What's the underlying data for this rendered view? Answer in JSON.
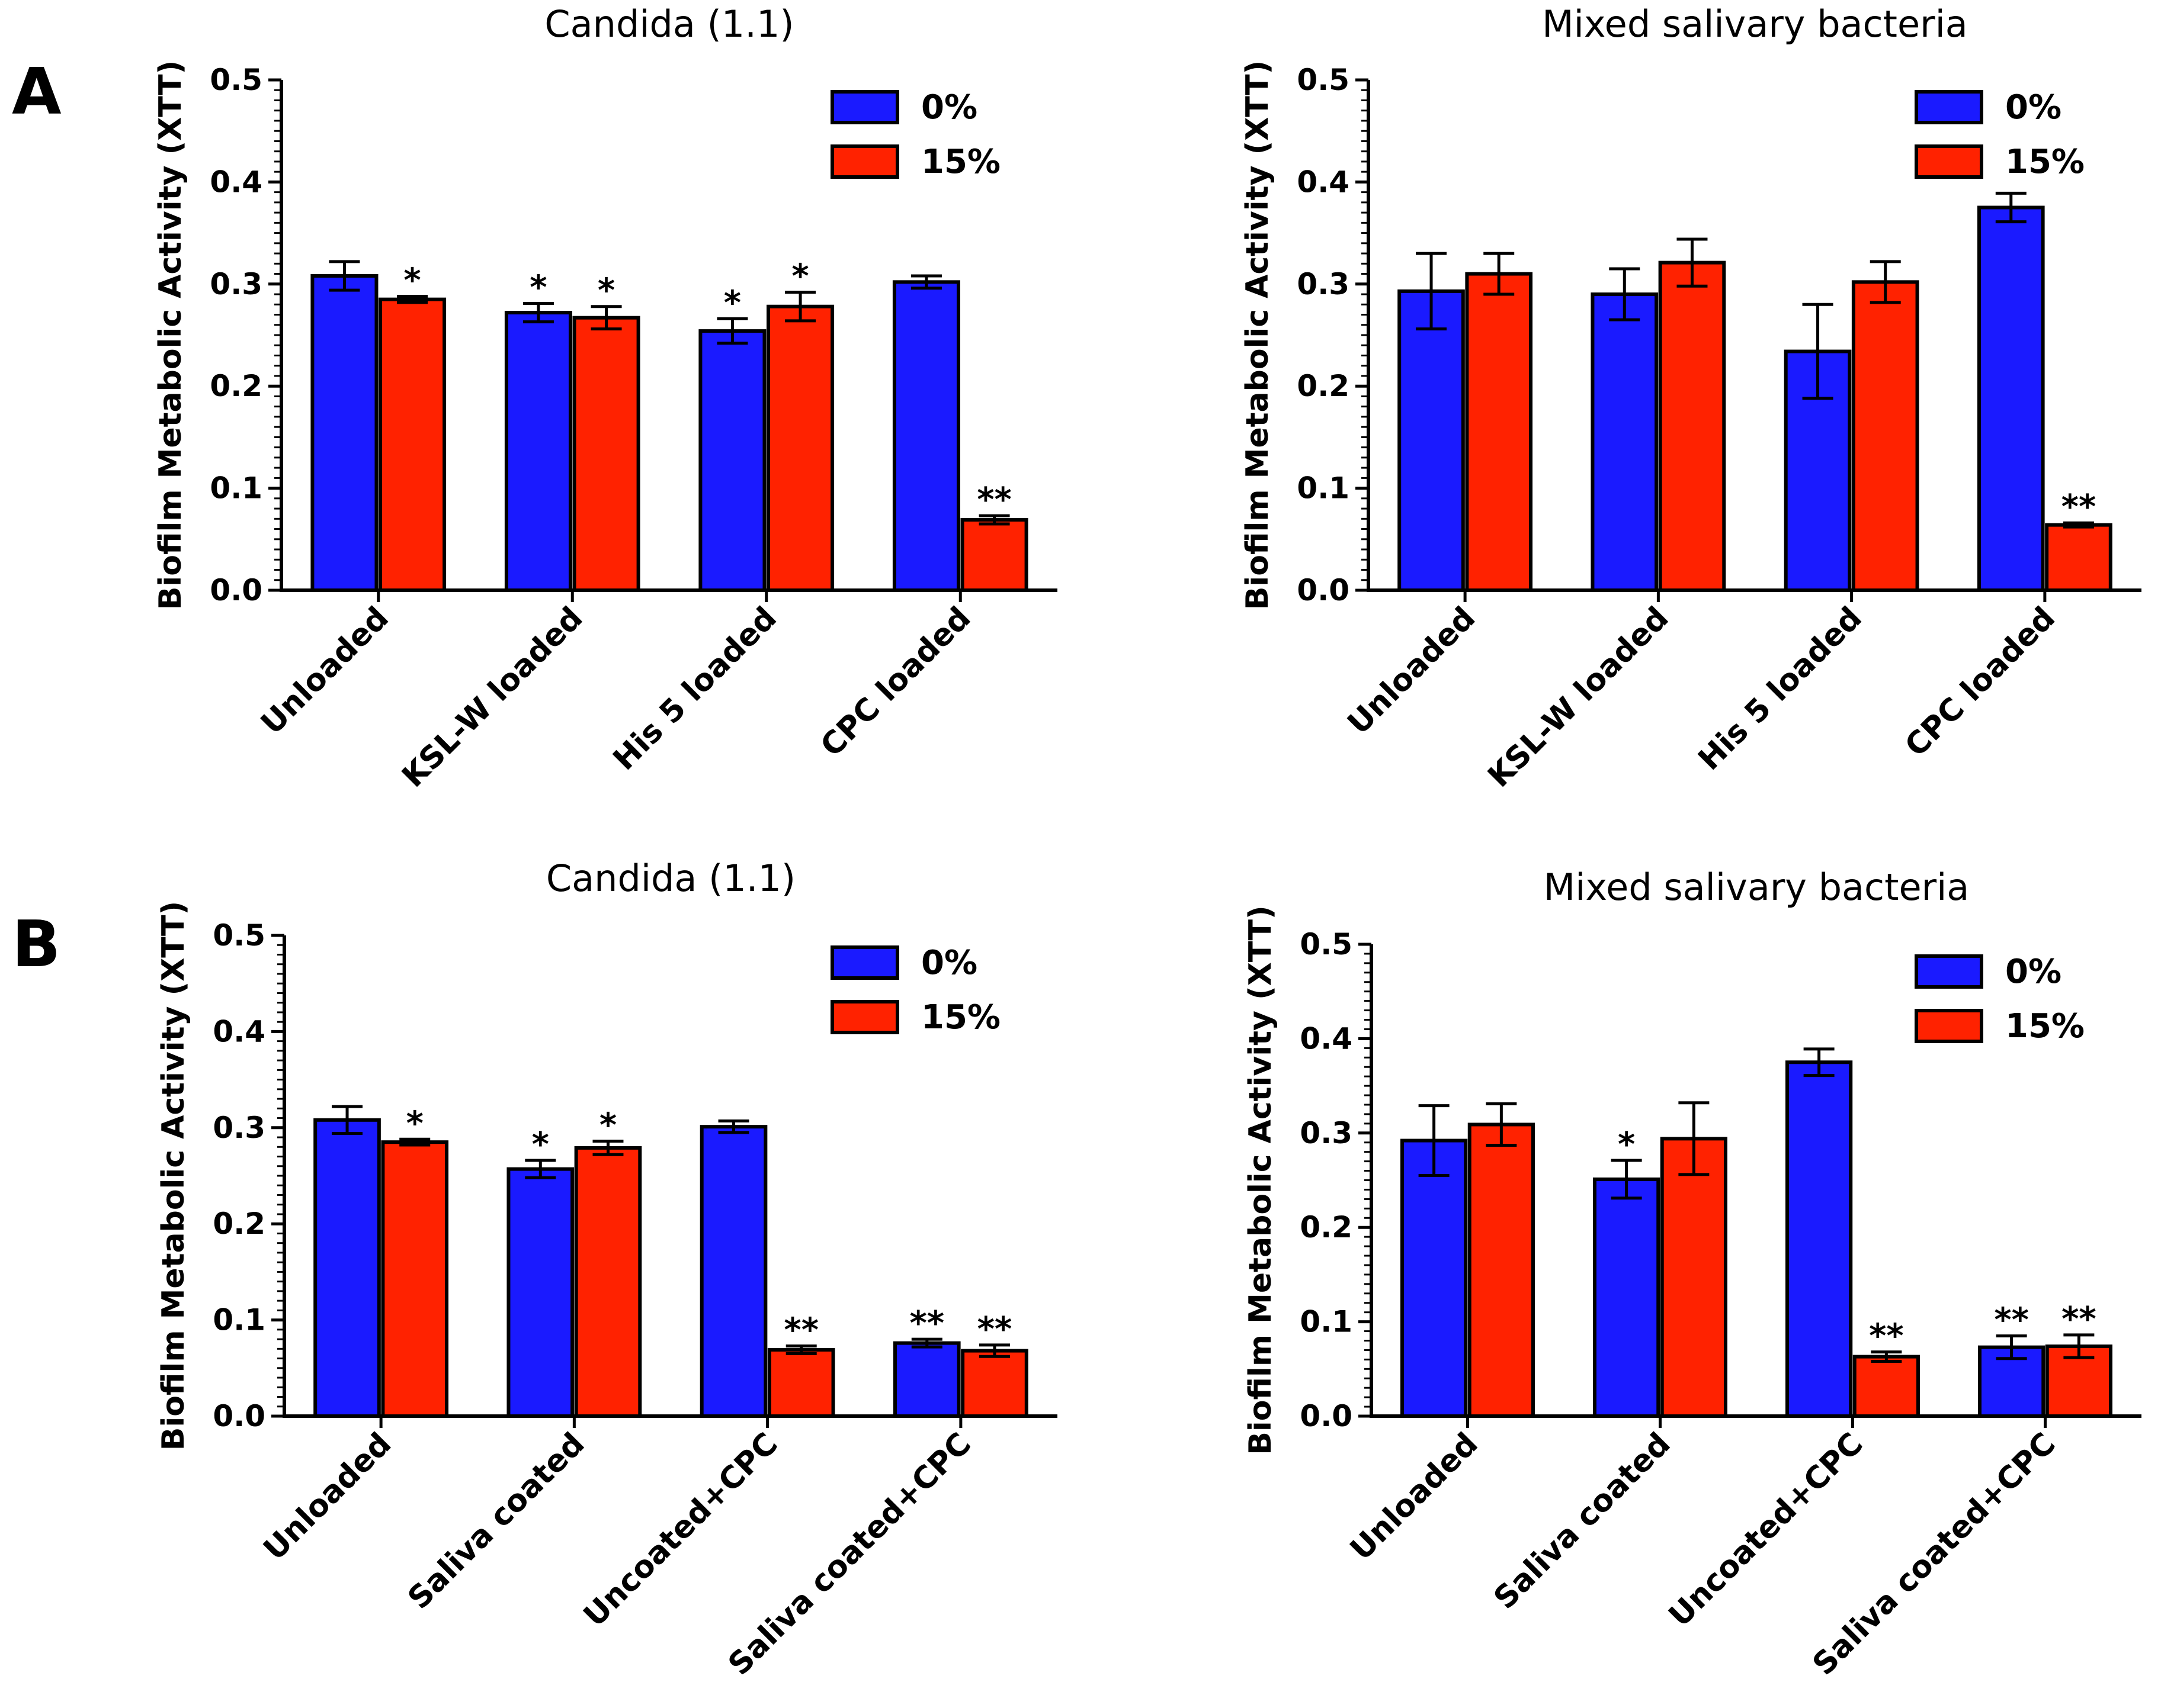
{
  "panel_labels": [
    "A",
    "B"
  ],
  "colors": {
    "zero": "#1a1aff",
    "fifteen": "#ff2200",
    "axis": "#000000"
  },
  "chart_data": [
    {
      "type": "bar",
      "panel": "A",
      "title": "Candida (1.1)",
      "xlabel": "",
      "ylabel": "Biofilm Metabolic Activity (XTT)",
      "ylim": [
        0,
        0.5
      ],
      "yticks": [
        "0.0",
        "0.1",
        "0.2",
        "0.3",
        "0.4",
        "0.5"
      ],
      "legend": "top-right",
      "categories": [
        "Unloaded",
        "KSL-W loaded",
        "His 5 loaded",
        "CPC loaded"
      ],
      "series": [
        {
          "name": "0%",
          "values": [
            0.308,
            0.272,
            0.254,
            0.302
          ],
          "errors": [
            0.014,
            0.009,
            0.012,
            0.006
          ],
          "sig": [
            "",
            "*",
            "*",
            ""
          ]
        },
        {
          "name": "15%",
          "values": [
            0.285,
            0.267,
            0.278,
            0.069
          ],
          "errors": [
            0.003,
            0.011,
            0.014,
            0.004
          ],
          "sig": [
            "*",
            "*",
            "*",
            "**"
          ]
        }
      ]
    },
    {
      "type": "bar",
      "panel": "A",
      "title": "Mixed salivary bacteria",
      "xlabel": "",
      "ylabel": "Biofilm Metabolic Activity (XTT)",
      "ylim": [
        0,
        0.5
      ],
      "yticks": [
        "0.0",
        "0.1",
        "0.2",
        "0.3",
        "0.4",
        "0.5"
      ],
      "legend": "top-right",
      "categories": [
        "Unloaded",
        "KSL-W loaded",
        "His 5 loaded",
        "CPC loaded"
      ],
      "series": [
        {
          "name": "0%",
          "values": [
            0.293,
            0.29,
            0.234,
            0.375
          ],
          "errors": [
            0.037,
            0.025,
            0.046,
            0.014
          ],
          "sig": [
            "",
            "",
            "",
            ""
          ]
        },
        {
          "name": "15%",
          "values": [
            0.31,
            0.321,
            0.302,
            0.064
          ],
          "errors": [
            0.02,
            0.023,
            0.02,
            0.002
          ],
          "sig": [
            "",
            "",
            "",
            "**"
          ]
        }
      ]
    },
    {
      "type": "bar",
      "panel": "B",
      "title": "Candida (1.1)",
      "xlabel": "",
      "ylabel": "Biofilm Metabolic Activity (XTT)",
      "ylim": [
        0,
        0.5
      ],
      "yticks": [
        "0.0",
        "0.1",
        "0.2",
        "0.3",
        "0.4",
        "0.5"
      ],
      "legend": "top-right",
      "categories": [
        "Unloaded",
        "Saliva coated",
        "Uncoated+CPC",
        "Saliva coated+CPC"
      ],
      "series": [
        {
          "name": "0%",
          "values": [
            0.308,
            0.257,
            0.301,
            0.076
          ],
          "errors": [
            0.014,
            0.009,
            0.006,
            0.004
          ],
          "sig": [
            "",
            "*",
            "",
            "**"
          ]
        },
        {
          "name": "15%",
          "values": [
            0.285,
            0.279,
            0.069,
            0.068
          ],
          "errors": [
            0.003,
            0.007,
            0.004,
            0.006
          ],
          "sig": [
            "*",
            "*",
            "**",
            "**"
          ]
        }
      ]
    },
    {
      "type": "bar",
      "panel": "B",
      "title": "Mixed salivary bacteria",
      "xlabel": "",
      "ylabel": "Biofilm Metabolic Activity (XTT)",
      "ylim": [
        0,
        0.5
      ],
      "yticks": [
        "0.0",
        "0.1",
        "0.2",
        "0.3",
        "0.4",
        "0.5"
      ],
      "legend": "top-right",
      "categories": [
        "Unloaded",
        "Saliva coated",
        "Uncoated+CPC",
        "Saliva coated+CPC"
      ],
      "series": [
        {
          "name": "0%",
          "values": [
            0.292,
            0.251,
            0.375,
            0.073
          ],
          "errors": [
            0.037,
            0.02,
            0.014,
            0.012
          ],
          "sig": [
            "",
            "*",
            "",
            "**"
          ]
        },
        {
          "name": "15%",
          "values": [
            0.309,
            0.294,
            0.063,
            0.074
          ],
          "errors": [
            0.022,
            0.038,
            0.005,
            0.012
          ],
          "sig": [
            "",
            "",
            "**",
            "**"
          ]
        }
      ]
    }
  ]
}
